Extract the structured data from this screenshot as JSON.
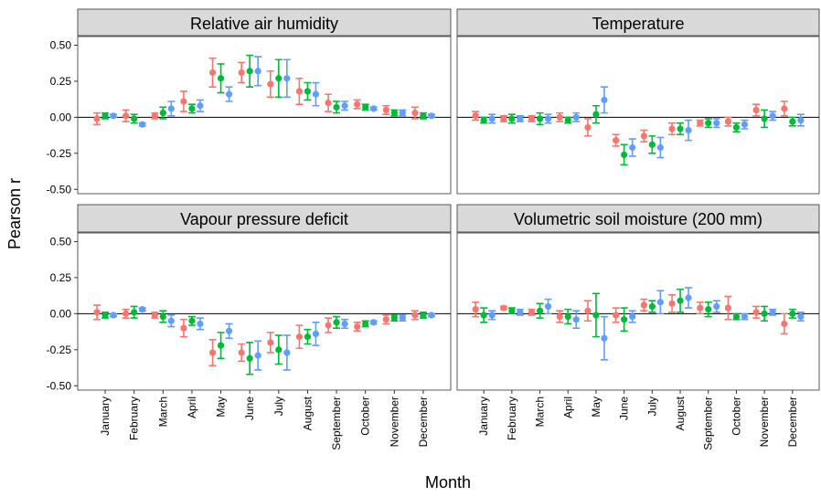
{
  "xlabel": "Month",
  "ylabel": "Pearson r",
  "categories": [
    "January",
    "February",
    "March",
    "April",
    "May",
    "June",
    "July",
    "August",
    "September",
    "October",
    "November",
    "December"
  ],
  "ylim": [
    -0.53,
    0.56
  ],
  "yticks": [
    {
      "value": 0.5,
      "label": "0.50"
    },
    {
      "value": 0.25,
      "label": "0.25"
    },
    {
      "value": 0,
      "label": "0.00"
    },
    {
      "value": -0.25,
      "label": "-0.25"
    },
    {
      "value": -0.5,
      "label": "-0.50"
    }
  ],
  "chart_data": [
    {
      "type": "errorbar",
      "title": "Relative air humidity",
      "series": [
        {
          "color": "#F8766D",
          "values": [
            -0.01,
            0.01,
            0.01,
            0.11,
            0.31,
            0.31,
            0.23,
            0.18,
            0.1,
            0.09,
            0.05,
            0.03
          ],
          "errors": [
            0.04,
            0.04,
            0.02,
            0.07,
            0.1,
            0.07,
            0.09,
            0.09,
            0.06,
            0.03,
            0.03,
            0.04
          ]
        },
        {
          "color": "#00BA38",
          "values": [
            0.01,
            -0.01,
            0.03,
            0.06,
            0.27,
            0.32,
            0.27,
            0.18,
            0.07,
            0.07,
            0.03,
            0.01
          ],
          "errors": [
            0.02,
            0.03,
            0.04,
            0.03,
            0.1,
            0.11,
            0.13,
            0.06,
            0.04,
            0.02,
            0.02,
            0.02
          ]
        },
        {
          "color": "#619CFF",
          "values": [
            0.01,
            -0.05,
            0.06,
            0.08,
            0.16,
            0.32,
            0.27,
            0.16,
            0.08,
            0.06,
            0.03,
            0.01
          ],
          "errors": [
            0.01,
            0.01,
            0.05,
            0.04,
            0.05,
            0.1,
            0.13,
            0.08,
            0.03,
            0.01,
            0.02,
            0.01
          ]
        }
      ]
    },
    {
      "type": "errorbar",
      "title": "Temperature",
      "series": [
        {
          "color": "#F8766D",
          "values": [
            0.01,
            -0.01,
            -0.01,
            0.0,
            -0.07,
            -0.16,
            -0.13,
            -0.08,
            -0.04,
            -0.03,
            0.05,
            0.06
          ],
          "errors": [
            0.03,
            0.02,
            0.02,
            0.03,
            0.06,
            0.04,
            0.04,
            0.04,
            0.02,
            0.03,
            0.04,
            0.05
          ]
        },
        {
          "color": "#00BA38",
          "values": [
            -0.02,
            -0.01,
            -0.01,
            -0.02,
            0.02,
            -0.26,
            -0.19,
            -0.08,
            -0.04,
            -0.07,
            -0.01,
            -0.03
          ],
          "errors": [
            0.02,
            0.03,
            0.04,
            0.02,
            0.06,
            0.07,
            0.06,
            0.04,
            0.03,
            0.03,
            0.06,
            0.03
          ]
        },
        {
          "color": "#619CFF",
          "values": [
            -0.01,
            -0.01,
            -0.01,
            0.0,
            0.12,
            -0.21,
            -0.21,
            -0.09,
            -0.04,
            -0.05,
            0.01,
            -0.02
          ],
          "errors": [
            0.03,
            0.02,
            0.03,
            0.03,
            0.09,
            0.06,
            0.07,
            0.07,
            0.03,
            0.03,
            0.03,
            0.04
          ]
        }
      ]
    },
    {
      "type": "errorbar",
      "title": "Vapour pressure deficit",
      "series": [
        {
          "color": "#F8766D",
          "values": [
            0.01,
            0.0,
            -0.01,
            -0.1,
            -0.27,
            -0.27,
            -0.2,
            -0.16,
            -0.08,
            -0.09,
            -0.04,
            -0.01
          ],
          "errors": [
            0.05,
            0.03,
            0.02,
            0.06,
            0.09,
            0.06,
            0.07,
            0.08,
            0.05,
            0.03,
            0.03,
            0.03
          ]
        },
        {
          "color": "#00BA38",
          "values": [
            -0.01,
            0.01,
            -0.02,
            -0.05,
            -0.22,
            -0.31,
            -0.25,
            -0.16,
            -0.06,
            -0.07,
            -0.03,
            -0.01
          ],
          "errors": [
            0.02,
            0.04,
            0.04,
            0.03,
            0.09,
            0.11,
            0.1,
            0.05,
            0.04,
            0.02,
            0.02,
            0.02
          ]
        },
        {
          "color": "#619CFF",
          "values": [
            -0.01,
            0.03,
            -0.05,
            -0.07,
            -0.12,
            -0.29,
            -0.27,
            -0.14,
            -0.07,
            -0.06,
            -0.03,
            -0.01
          ],
          "errors": [
            0.01,
            0.01,
            0.04,
            0.04,
            0.05,
            0.1,
            0.12,
            0.08,
            0.03,
            0.01,
            0.02,
            0.01
          ]
        }
      ]
    },
    {
      "type": "errorbar",
      "title": "Volumetric soil moisture (200 mm)",
      "series": [
        {
          "color": "#F8766D",
          "values": [
            0.03,
            0.04,
            0.01,
            -0.02,
            0.02,
            -0.01,
            0.06,
            0.07,
            0.04,
            0.04,
            0.01,
            -0.07
          ],
          "errors": [
            0.05,
            0.01,
            0.02,
            0.04,
            0.07,
            0.05,
            0.04,
            0.06,
            0.04,
            0.08,
            0.04,
            0.07
          ]
        },
        {
          "color": "#00BA38",
          "values": [
            -0.01,
            0.02,
            0.02,
            -0.02,
            -0.01,
            -0.04,
            0.05,
            0.09,
            0.03,
            -0.02,
            0.0,
            0.0
          ],
          "errors": [
            0.05,
            0.02,
            0.05,
            0.05,
            0.15,
            0.08,
            0.04,
            0.08,
            0.05,
            0.02,
            0.05,
            0.03
          ]
        },
        {
          "color": "#619CFF",
          "values": [
            -0.01,
            0.01,
            0.05,
            -0.04,
            -0.17,
            -0.02,
            0.08,
            0.11,
            0.05,
            -0.02,
            0.01,
            -0.02
          ],
          "errors": [
            0.03,
            0.02,
            0.05,
            0.06,
            0.15,
            0.04,
            0.08,
            0.07,
            0.04,
            0.02,
            0.02,
            0.03
          ]
        }
      ]
    }
  ]
}
